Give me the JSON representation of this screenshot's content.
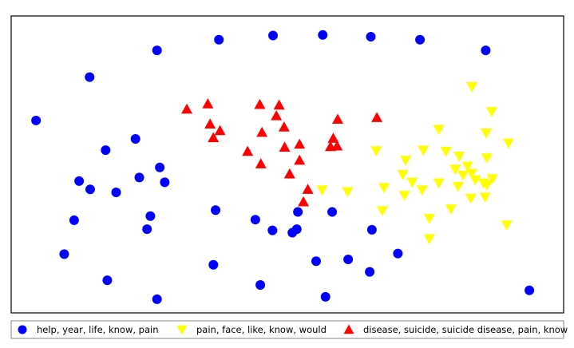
{
  "chart_data": {
    "type": "scatter",
    "title": "",
    "xlabel": "",
    "ylabel": "",
    "axes_visible": false,
    "grid": false,
    "legend_position": "bottom",
    "xlim": [
      0,
      100
    ],
    "ylim": [
      0,
      100
    ],
    "series": [
      {
        "name": "help, year, life, know, pain",
        "marker": "circle",
        "color": "#0000ff",
        "points": [
          [
            37.6,
            92.0
          ],
          [
            47.4,
            93.4
          ],
          [
            56.4,
            93.6
          ],
          [
            65.1,
            93.0
          ],
          [
            74.0,
            92.0
          ],
          [
            26.4,
            88.4
          ],
          [
            85.9,
            88.4
          ],
          [
            14.2,
            79.4
          ],
          [
            4.5,
            64.8
          ],
          [
            22.5,
            58.6
          ],
          [
            17.1,
            54.8
          ],
          [
            26.9,
            49.0
          ],
          [
            23.2,
            45.6
          ],
          [
            12.3,
            44.4
          ],
          [
            27.8,
            44.0
          ],
          [
            14.3,
            41.6
          ],
          [
            19.0,
            40.6
          ],
          [
            37.0,
            34.6
          ],
          [
            51.9,
            34.0
          ],
          [
            58.1,
            34.0
          ],
          [
            25.2,
            32.6
          ],
          [
            11.4,
            31.2
          ],
          [
            44.2,
            31.4
          ],
          [
            24.6,
            28.2
          ],
          [
            47.3,
            27.8
          ],
          [
            51.7,
            28.2
          ],
          [
            50.9,
            27.0
          ],
          [
            65.3,
            28.0
          ],
          [
            9.6,
            19.8
          ],
          [
            61.0,
            18.0
          ],
          [
            70.0,
            20.0
          ],
          [
            55.2,
            17.4
          ],
          [
            64.9,
            13.8
          ],
          [
            36.6,
            16.2
          ],
          [
            17.4,
            11.0
          ],
          [
            45.1,
            9.4
          ],
          [
            56.9,
            5.4
          ],
          [
            26.4,
            4.6
          ],
          [
            93.8,
            7.6
          ]
        ]
      },
      {
        "name": "pain, face, like, know, would",
        "marker": "triangle-down",
        "color": "#ffff00",
        "points": [
          [
            83.4,
            76.2
          ],
          [
            87.0,
            67.8
          ],
          [
            77.4,
            61.8
          ],
          [
            86.0,
            60.6
          ],
          [
            90.0,
            57.2
          ],
          [
            66.1,
            54.6
          ],
          [
            74.6,
            54.8
          ],
          [
            78.7,
            54.4
          ],
          [
            81.1,
            52.8
          ],
          [
            86.1,
            52.2
          ],
          [
            71.4,
            51.4
          ],
          [
            82.6,
            49.4
          ],
          [
            80.4,
            48.4
          ],
          [
            70.9,
            46.6
          ],
          [
            81.8,
            46.4
          ],
          [
            83.4,
            47.0
          ],
          [
            72.6,
            44.0
          ],
          [
            77.4,
            43.8
          ],
          [
            84.0,
            44.8
          ],
          [
            87.1,
            45.2
          ],
          [
            56.3,
            41.4
          ],
          [
            67.5,
            42.2
          ],
          [
            74.4,
            41.4
          ],
          [
            80.9,
            42.6
          ],
          [
            85.5,
            43.8
          ],
          [
            86.1,
            43.0
          ],
          [
            60.9,
            40.8
          ],
          [
            71.2,
            39.6
          ],
          [
            83.2,
            38.6
          ],
          [
            85.8,
            39.0
          ],
          [
            67.2,
            34.4
          ],
          [
            79.6,
            35.0
          ],
          [
            75.7,
            31.8
          ],
          [
            89.7,
            29.6
          ],
          [
            75.7,
            25.0
          ]
        ]
      },
      {
        "name": "disease, suicide, suicide disease, pain, know",
        "marker": "triangle-up",
        "color": "#ff0000",
        "points": [
          [
            31.8,
            68.6
          ],
          [
            35.6,
            70.4
          ],
          [
            45.0,
            70.2
          ],
          [
            48.5,
            70.0
          ],
          [
            48.0,
            66.4
          ],
          [
            66.2,
            65.8
          ],
          [
            59.1,
            65.2
          ],
          [
            36.0,
            63.6
          ],
          [
            49.4,
            62.6
          ],
          [
            37.8,
            61.4
          ],
          [
            45.4,
            60.8
          ],
          [
            36.6,
            59.0
          ],
          [
            58.3,
            58.8
          ],
          [
            52.2,
            56.8
          ],
          [
            59.0,
            56.2
          ],
          [
            49.5,
            55.8
          ],
          [
            57.8,
            56.0
          ],
          [
            42.8,
            54.4
          ],
          [
            52.2,
            51.4
          ],
          [
            45.2,
            50.2
          ],
          [
            50.4,
            46.8
          ],
          [
            53.7,
            41.6
          ],
          [
            52.9,
            37.4
          ]
        ]
      }
    ]
  }
}
